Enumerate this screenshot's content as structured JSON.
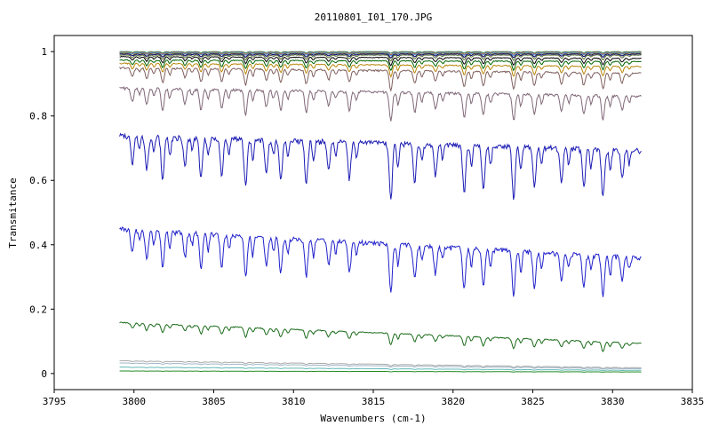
{
  "chart_data": {
    "type": "line",
    "title": "20110801_I01_170.JPG",
    "xlabel": "Wavenumbers (cm-1)",
    "ylabel": "Transmitance",
    "xlim": [
      3795,
      3835
    ],
    "ylim": [
      -0.05,
      1.05
    ],
    "x_ticks": [
      "3795",
      "3800",
      "3805",
      "3810",
      "3815",
      "3820",
      "3825",
      "3830",
      "3835"
    ],
    "y_ticks": [
      "0",
      "0.2",
      "0.4",
      "0.6",
      "0.8",
      "1"
    ],
    "x_tick_values": [
      3795,
      3800,
      3805,
      3810,
      3815,
      3820,
      3825,
      3830,
      3835
    ],
    "y_tick_values": [
      0,
      0.2,
      0.4,
      0.6,
      0.8,
      1.0
    ],
    "grid": false,
    "x_range": [
      3799.1,
      3831.8
    ],
    "line_positions": [
      3799.9,
      3800.8,
      3801.8,
      3803.2,
      3804.2,
      3805.5,
      3807.0,
      3808.3,
      3809.2,
      3810.8,
      3812.2,
      3813.5,
      3816.1,
      3817.6,
      3818.9,
      3820.7,
      3821.9,
      3823.8,
      3825.1,
      3826.8,
      3828.2,
      3829.4,
      3830.6
    ],
    "line_strengths": [
      0.55,
      0.7,
      0.9,
      0.6,
      0.85,
      0.8,
      1.0,
      0.7,
      0.85,
      0.9,
      0.6,
      0.75,
      1.2,
      0.8,
      0.65,
      1.0,
      0.9,
      1.1,
      0.85,
      0.7,
      0.8,
      1.0,
      0.6
    ],
    "series": [
      {
        "color": "#2e8b57",
        "start": 1.0,
        "end": 1.0,
        "depth": 0.004
      },
      {
        "color": "#cc4444",
        "start": 0.998,
        "end": 0.998,
        "depth": 0.006
      },
      {
        "color": "#3a9ad9",
        "start": 0.997,
        "end": 0.997,
        "depth": 0.008
      },
      {
        "color": "#d4a017",
        "start": 0.995,
        "end": 0.995,
        "depth": 0.012
      },
      {
        "color": "#000080",
        "start": 0.993,
        "end": 0.993,
        "depth": 0.01
      },
      {
        "color": "#556b2f",
        "start": 0.99,
        "end": 0.99,
        "depth": 0.015
      },
      {
        "color": "#000000",
        "start": 0.985,
        "end": 0.98,
        "depth": 0.02
      },
      {
        "color": "#006400",
        "start": 0.975,
        "end": 0.97,
        "depth": 0.025
      },
      {
        "color": "#b8860b",
        "start": 0.965,
        "end": 0.955,
        "depth": 0.03
      },
      {
        "color": "#806060",
        "start": 0.952,
        "end": 0.935,
        "depth": 0.05
      },
      {
        "color": "#806878",
        "start": 0.89,
        "end": 0.865,
        "depth": 0.075
      },
      {
        "color": "#1c1cb4",
        "start": 0.745,
        "end": 0.7,
        "depth": 0.15
      },
      {
        "color": "#2222cc",
        "start": 0.455,
        "end": 0.365,
        "depth": 0.13
      },
      {
        "color": "#1a6b1a",
        "start": 0.16,
        "end": 0.095,
        "depth": 0.03
      },
      {
        "color": "#a8a8a8",
        "start": 0.04,
        "end": 0.018,
        "depth": 0.004
      },
      {
        "color": "#9fb6c8",
        "start": 0.033,
        "end": 0.015,
        "depth": 0.003
      },
      {
        "color": "#60b8b8",
        "start": 0.02,
        "end": 0.01,
        "depth": 0.002
      },
      {
        "color": "#228b22",
        "start": 0.008,
        "end": 0.005,
        "depth": 0.001
      }
    ]
  }
}
